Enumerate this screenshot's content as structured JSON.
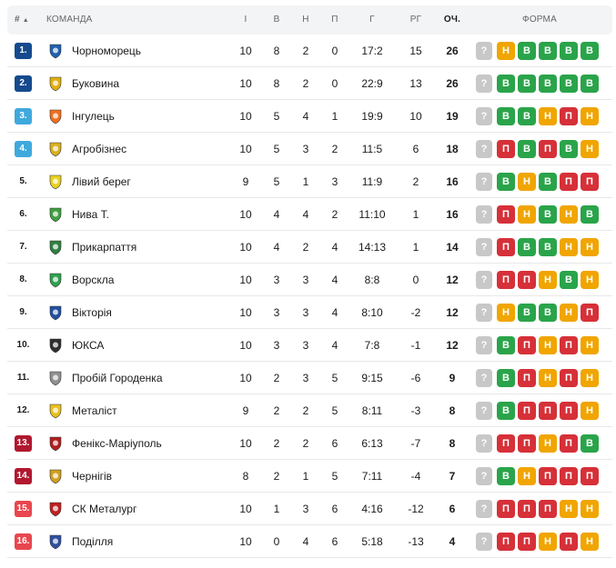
{
  "header": {
    "rank": "#",
    "sort_icon": "▲",
    "team": "КОМАНДА",
    "played": "І",
    "won": "В",
    "draw": "Н",
    "lost": "П",
    "goals": "Г",
    "diff": "РГ",
    "points": "ОЧ.",
    "form": "ФОРМА"
  },
  "colors": {
    "W": "#2aa44a",
    "D": "#f0a500",
    "L": "#d63038",
    "next": "#c8c8c8",
    "rank_blue_dark": "#154a8e",
    "rank_blue_light": "#3fa9dd",
    "rank_red_dark": "#b0182f",
    "rank_red_light": "#e8464f"
  },
  "next_label": "?",
  "form_labels": {
    "W": "В",
    "D": "Н",
    "L": "П"
  },
  "rows": [
    {
      "pos": "1.",
      "rank_style": "blue_dark",
      "team": "Чорноморець",
      "logo_icon": "chornomorets-logo-icon",
      "logo_color": "#2060b0",
      "p": "10",
      "w": "8",
      "d": "2",
      "l": "0",
      "g": "17:2",
      "gd": "15",
      "pts": "26",
      "form": [
        "D",
        "W",
        "W",
        "W",
        "W"
      ]
    },
    {
      "pos": "2.",
      "rank_style": "blue_dark",
      "team": "Буковина",
      "logo_icon": "bukovyna-logo-icon",
      "logo_color": "#e0b010",
      "p": "10",
      "w": "8",
      "d": "2",
      "l": "0",
      "g": "22:9",
      "gd": "13",
      "pts": "26",
      "form": [
        "W",
        "W",
        "W",
        "W",
        "W"
      ]
    },
    {
      "pos": "3.",
      "rank_style": "blue_light",
      "team": "Інгулець",
      "logo_icon": "inhulets-logo-icon",
      "logo_color": "#f07020",
      "p": "10",
      "w": "5",
      "d": "4",
      "l": "1",
      "g": "19:9",
      "gd": "10",
      "pts": "19",
      "form": [
        "W",
        "W",
        "D",
        "L",
        "D"
      ]
    },
    {
      "pos": "4.",
      "rank_style": "blue_light",
      "team": "Агробізнес",
      "logo_icon": "ahrobiznes-logo-icon",
      "logo_color": "#d8b020",
      "p": "10",
      "w": "5",
      "d": "3",
      "l": "2",
      "g": "11:5",
      "gd": "6",
      "pts": "18",
      "form": [
        "L",
        "W",
        "L",
        "W",
        "D"
      ]
    },
    {
      "pos": "5.",
      "rank_style": "plain",
      "team": "Лівий берег",
      "logo_icon": "livyi-bereh-logo-icon",
      "logo_color": "#e8d020",
      "p": "9",
      "w": "5",
      "d": "1",
      "l": "3",
      "g": "11:9",
      "gd": "2",
      "pts": "16",
      "form": [
        "W",
        "D",
        "W",
        "L",
        "L"
      ]
    },
    {
      "pos": "6.",
      "rank_style": "plain",
      "team": "Нива Т.",
      "logo_icon": "nyva-logo-icon",
      "logo_color": "#40a040",
      "p": "10",
      "w": "4",
      "d": "4",
      "l": "2",
      "g": "11:10",
      "gd": "1",
      "pts": "16",
      "form": [
        "L",
        "D",
        "W",
        "D",
        "W"
      ]
    },
    {
      "pos": "7.",
      "rank_style": "plain",
      "team": "Прикарпаття",
      "logo_icon": "prykarpattia-logo-icon",
      "logo_color": "#308040",
      "p": "10",
      "w": "4",
      "d": "2",
      "l": "4",
      "g": "14:13",
      "gd": "1",
      "pts": "14",
      "form": [
        "L",
        "W",
        "W",
        "D",
        "D"
      ]
    },
    {
      "pos": "8.",
      "rank_style": "plain",
      "team": "Ворскла",
      "logo_icon": "vorskla-logo-icon",
      "logo_color": "#30a050",
      "p": "10",
      "w": "3",
      "d": "3",
      "l": "4",
      "g": "8:8",
      "gd": "0",
      "pts": "12",
      "form": [
        "L",
        "L",
        "D",
        "W",
        "D"
      ]
    },
    {
      "pos": "9.",
      "rank_style": "plain",
      "team": "Вікторія",
      "logo_icon": "viktoriia-logo-icon",
      "logo_color": "#2050a0",
      "p": "10",
      "w": "3",
      "d": "3",
      "l": "4",
      "g": "8:10",
      "gd": "-2",
      "pts": "12",
      "form": [
        "D",
        "W",
        "W",
        "D",
        "L"
      ]
    },
    {
      "pos": "10.",
      "rank_style": "plain",
      "team": "ЮКСА",
      "logo_icon": "yuksa-logo-icon",
      "logo_color": "#303030",
      "p": "10",
      "w": "3",
      "d": "3",
      "l": "4",
      "g": "7:8",
      "gd": "-1",
      "pts": "12",
      "form": [
        "W",
        "L",
        "D",
        "L",
        "D"
      ]
    },
    {
      "pos": "11.",
      "rank_style": "plain",
      "team": "Пробій Городенка",
      "logo_icon": "probii-logo-icon",
      "logo_color": "#909090",
      "p": "10",
      "w": "2",
      "d": "3",
      "l": "5",
      "g": "9:15",
      "gd": "-6",
      "pts": "9",
      "form": [
        "W",
        "L",
        "D",
        "L",
        "D"
      ]
    },
    {
      "pos": "12.",
      "rank_style": "plain",
      "team": "Металіст",
      "logo_icon": "metalist-logo-icon",
      "logo_color": "#e8c020",
      "p": "9",
      "w": "2",
      "d": "2",
      "l": "5",
      "g": "8:11",
      "gd": "-3",
      "pts": "8",
      "form": [
        "W",
        "L",
        "L",
        "L",
        "D"
      ]
    },
    {
      "pos": "13.",
      "rank_style": "red_dark",
      "team": "Фенікс-Маріуполь",
      "logo_icon": "feniks-logo-icon",
      "logo_color": "#b02020",
      "p": "10",
      "w": "2",
      "d": "2",
      "l": "6",
      "g": "6:13",
      "gd": "-7",
      "pts": "8",
      "form": [
        "L",
        "L",
        "D",
        "L",
        "W"
      ]
    },
    {
      "pos": "14.",
      "rank_style": "red_dark",
      "team": "Чернігів",
      "logo_icon": "chernihiv-logo-icon",
      "logo_color": "#d0a020",
      "p": "8",
      "w": "2",
      "d": "1",
      "l": "5",
      "g": "7:11",
      "gd": "-4",
      "pts": "7",
      "form": [
        "W",
        "D",
        "L",
        "L",
        "L"
      ]
    },
    {
      "pos": "15.",
      "rank_style": "red_light",
      "team": "СК Металург",
      "logo_icon": "metalurh-logo-icon",
      "logo_color": "#c02020",
      "p": "10",
      "w": "1",
      "d": "3",
      "l": "6",
      "g": "4:16",
      "gd": "-12",
      "pts": "6",
      "form": [
        "L",
        "L",
        "L",
        "D",
        "D"
      ]
    },
    {
      "pos": "16.",
      "rank_style": "red_light",
      "team": "Поділля",
      "logo_icon": "podillia-logo-icon",
      "logo_color": "#3050a0",
      "p": "10",
      "w": "0",
      "d": "4",
      "l": "6",
      "g": "5:18",
      "gd": "-13",
      "pts": "4",
      "form": [
        "L",
        "L",
        "D",
        "L",
        "D"
      ]
    }
  ]
}
